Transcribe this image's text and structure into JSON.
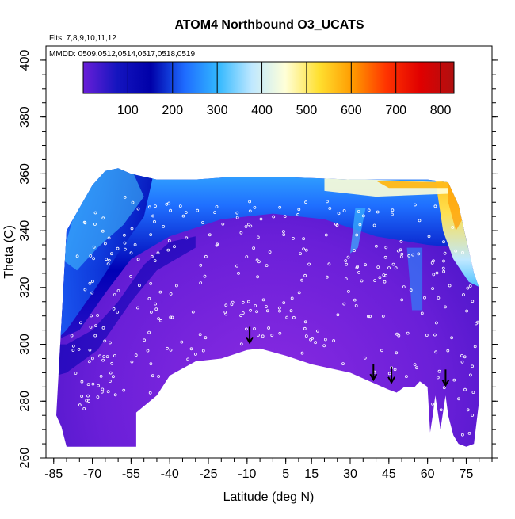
{
  "chart_data": {
    "type": "heatmap",
    "title": "ATOM4 Northbound O3_UCATS",
    "annotations": {
      "flights": "Flts: 7,8,9,10,11,12",
      "dates": "MMDD: 0509,0512,0514,0517,0518,0519"
    },
    "xlabel": "Latitude (deg N)",
    "ylabel": "Theta (C)",
    "xlim": [
      -88,
      85
    ],
    "ylim": [
      260,
      405
    ],
    "x_ticks": [
      -85,
      -70,
      -55,
      -40,
      -25,
      -10,
      5,
      15,
      30,
      45,
      60,
      75
    ],
    "y_ticks": [
      260,
      280,
      300,
      320,
      340,
      360,
      380,
      400
    ],
    "colorbar": {
      "ticks": [
        100,
        200,
        300,
        400,
        500,
        600,
        700,
        800
      ],
      "range": [
        0,
        830
      ],
      "colors": [
        "#6a1fd8",
        "#1515bf",
        "#0000a8",
        "#1e6bff",
        "#32b8ff",
        "#bfe8ff",
        "#ffffd8",
        "#ffe030",
        "#ff9a00",
        "#ff3300",
        "#e00000",
        "#b01010"
      ]
    },
    "data_extent": {
      "top_theta": [
        [
          -80,
          340
        ],
        [
          -75,
          348
        ],
        [
          -70,
          356
        ],
        [
          -65,
          361
        ],
        [
          -60,
          362
        ],
        [
          -55,
          360
        ],
        [
          -45,
          358
        ],
        [
          -30,
          358
        ],
        [
          -15,
          359
        ],
        [
          0,
          359
        ],
        [
          15,
          358.5
        ],
        [
          30,
          358
        ],
        [
          45,
          358
        ],
        [
          60,
          358
        ],
        [
          68,
          357
        ],
        [
          72,
          349
        ],
        [
          75,
          337
        ],
        [
          78,
          325
        ],
        [
          80,
          320
        ]
      ],
      "bottom_theta": [
        [
          80,
          280
        ],
        [
          78,
          265
        ],
        [
          75,
          264
        ],
        [
          72,
          265
        ],
        [
          70,
          268
        ],
        [
          68,
          275
        ],
        [
          67,
          282
        ],
        [
          65,
          270
        ],
        [
          63,
          282
        ],
        [
          62,
          275
        ],
        [
          61,
          269
        ],
        [
          60,
          285
        ],
        [
          57,
          287
        ],
        [
          55,
          285
        ],
        [
          51,
          285
        ],
        [
          48,
          283
        ],
        [
          45,
          284
        ],
        [
          40,
          286
        ],
        [
          30,
          290
        ],
        [
          15,
          293
        ],
        [
          5,
          296
        ],
        [
          -5,
          298.5
        ],
        [
          -10,
          298
        ],
        [
          -20,
          295
        ],
        [
          -30,
          294
        ],
        [
          -40,
          289
        ],
        [
          -45,
          282
        ],
        [
          -53,
          276
        ],
        [
          -53,
          264
        ],
        [
          -80,
          264
        ],
        [
          -82,
          271
        ],
        [
          -84,
          275
        ]
      ]
    },
    "arrows_at_latitude": [
      -9,
      39,
      46,
      67
    ],
    "arrow_base_theta": [
      300,
      287,
      286,
      285
    ]
  }
}
